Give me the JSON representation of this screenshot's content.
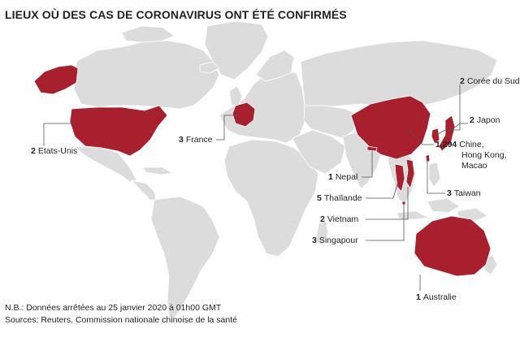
{
  "title": "LIEUX OÙ DES CAS DE CORONAVIRUS ONT ÉTÉ CONFIRMÉS",
  "colors": {
    "land": "#dcdcdc",
    "highlight": "#a8202e",
    "border": "#ffffff",
    "leader": "#555555"
  },
  "labels": {
    "coree": {
      "count": "2",
      "name": "Corée du Sud"
    },
    "japon": {
      "count": "2",
      "name": "Japon"
    },
    "chine": {
      "count": "1.294",
      "name1": "Chine,",
      "name2": "Hong Kong,",
      "name3": "Macao"
    },
    "usa": {
      "count": "2",
      "name": "Etats-Unis"
    },
    "france": {
      "count": "3",
      "name": "France"
    },
    "nepal": {
      "count": "1",
      "name": "Nepal"
    },
    "thailande": {
      "count": "5",
      "name": "Thaïlande"
    },
    "taiwan": {
      "count": "3",
      "name": "Taiwan"
    },
    "vietnam": {
      "count": "2",
      "name": "Vietnam"
    },
    "singapour": {
      "count": "3",
      "name": "Singapour"
    },
    "australie": {
      "count": "1",
      "name": "Australie"
    }
  },
  "footer": {
    "note": "N.B.: Données arrêtées au 25 janvier 2020 à 01h00 GMT",
    "sources": "Sources: Reuters, Commission nationale chinoise de la santé"
  }
}
